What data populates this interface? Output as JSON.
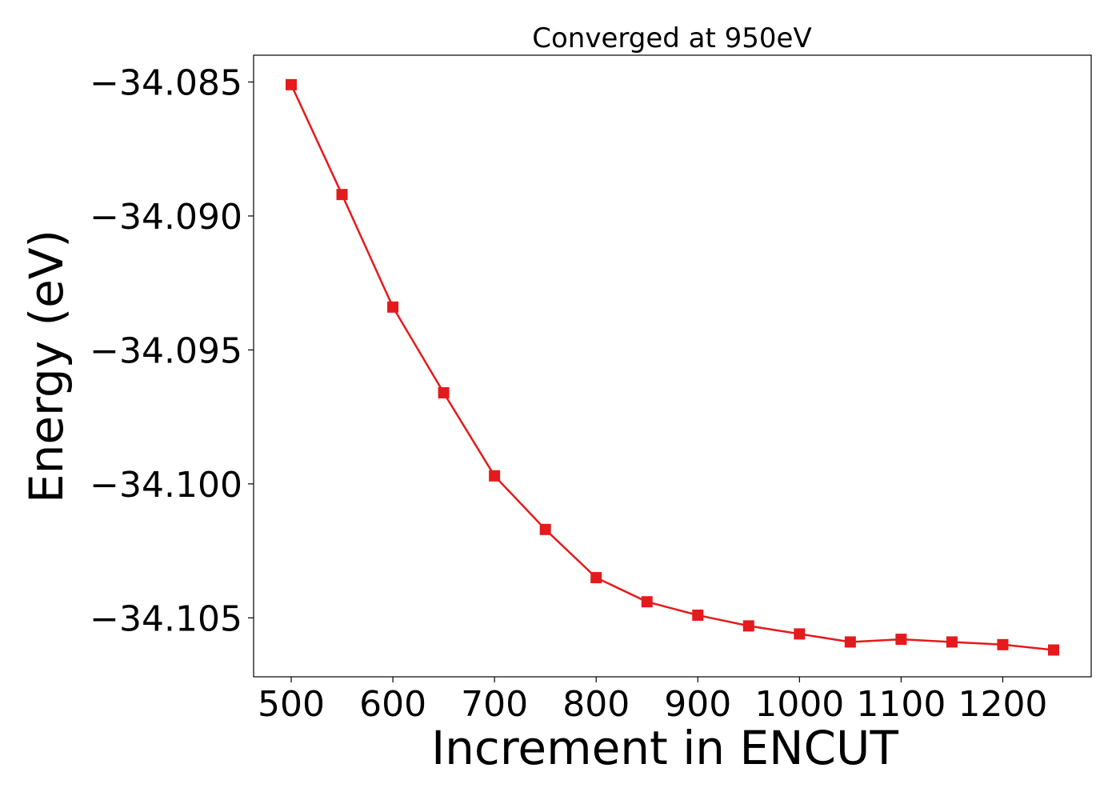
{
  "chart_data": {
    "type": "line",
    "title": "Converged at 950eV",
    "xlabel": "Increment in ENCUT",
    "ylabel": "Energy (eV)",
    "x": [
      500,
      550,
      600,
      650,
      700,
      750,
      800,
      850,
      900,
      950,
      1000,
      1050,
      1100,
      1150,
      1200,
      1250
    ],
    "series": [
      {
        "values": [
          -34.0851,
          -34.0892,
          -34.0934,
          -34.0966,
          -34.0997,
          -34.1017,
          -34.1035,
          -34.1044,
          -34.1049,
          -34.1053,
          -34.1056,
          -34.1059,
          -34.1058,
          -34.1059,
          -34.106,
          -34.1062
        ],
        "color": "#e41a1c",
        "marker": "square"
      }
    ],
    "xticks": [
      500,
      600,
      700,
      800,
      900,
      1000,
      1100,
      1200
    ],
    "xtick_labels": [
      "500",
      "600",
      "700",
      "800",
      "900",
      "1000",
      "1100",
      "1200"
    ],
    "yticks": [
      -34.085,
      -34.09,
      -34.095,
      -34.1,
      -34.105
    ],
    "ytick_labels": [
      "−34.085",
      "−34.090",
      "−34.095",
      "−34.100",
      "−34.105"
    ],
    "xlim": [
      463,
      1287
    ],
    "ylim": [
      -34.1072,
      -34.084
    ],
    "grid": false,
    "legend": "none"
  }
}
